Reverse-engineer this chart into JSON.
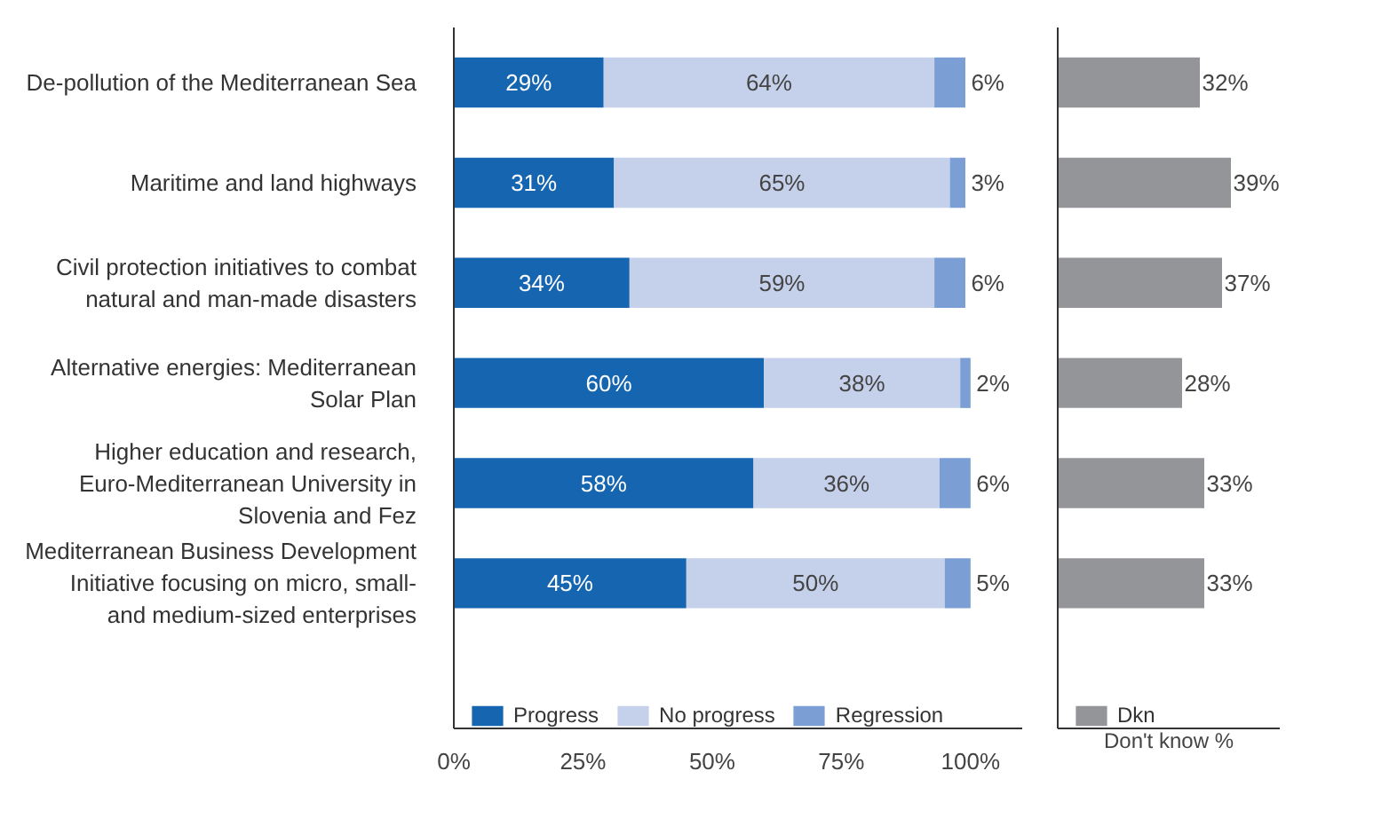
{
  "chart_data": [
    {
      "type": "bar",
      "orientation": "horizontal",
      "stacked": true,
      "categories": [
        "De-pollution of the Mediterranean Sea",
        "Maritime and land highways",
        "Civil protection initiatives to combat\nnatural and man-made disasters",
        "Alternative energies: Mediterranean\nSolar Plan",
        "Higher education and research,\nEuro-Mediterranean University in\nSlovenia and Fez",
        "Mediterranean Business Development\nInitiative focusing on micro, small-\nand medium-sized enterprises"
      ],
      "series": [
        {
          "name": "Progress",
          "color": "#1565b0",
          "values": [
            29,
            31,
            34,
            60,
            58,
            45
          ],
          "value_labels": [
            "29%",
            "31%",
            "34%",
            "60%",
            "58%",
            "45%"
          ]
        },
        {
          "name": "No progress",
          "color": "#c5d0ea",
          "values": [
            64,
            65,
            59,
            38,
            36,
            50
          ],
          "value_labels": [
            "64%",
            "65%",
            "59%",
            "38%",
            "36%",
            "50%"
          ]
        },
        {
          "name": "Regression",
          "color": "#7b9fd4",
          "values": [
            6,
            3,
            6,
            2,
            6,
            5
          ],
          "value_labels": [
            "6%",
            "3%",
            "6%",
            "2%",
            "6%",
            "5%"
          ]
        }
      ],
      "xlim": [
        0,
        110
      ],
      "xticks": [
        {
          "value": 0,
          "label": "0%"
        },
        {
          "value": 25,
          "label": "25%"
        },
        {
          "value": 50,
          "label": "50%"
        },
        {
          "value": 75,
          "label": "75%"
        },
        {
          "value": 100,
          "label": "100%"
        }
      ],
      "grid": false,
      "legend": "bottom"
    },
    {
      "type": "bar",
      "orientation": "horizontal",
      "xlabel": "Don't know %",
      "categories": [
        null,
        null,
        null,
        null,
        null,
        null
      ],
      "series": [
        {
          "name": "Dkn",
          "color": "#939598",
          "values": [
            32,
            39,
            37,
            28,
            33,
            33
          ],
          "value_labels": [
            "32%",
            "39%",
            "37%",
            "28%",
            "33%",
            "33%"
          ]
        }
      ],
      "xlim": [
        0,
        50
      ],
      "tick_labels": false,
      "grid": false,
      "legend": "bottom"
    }
  ]
}
